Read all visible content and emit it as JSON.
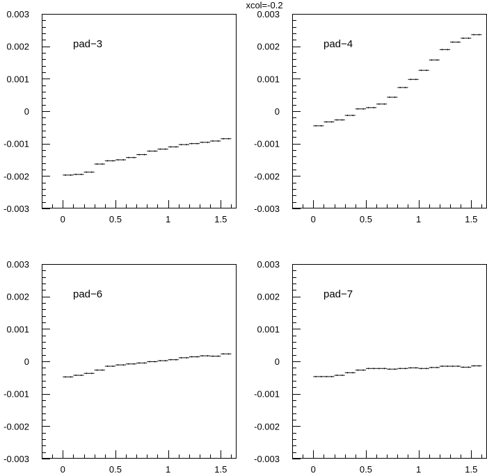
{
  "title": "xcol=-0.2",
  "chart_data": [
    {
      "type": "scatter",
      "pad_label": "pad−3",
      "xlim": [
        -0.2,
        1.65
      ],
      "ylim": [
        -0.003,
        0.003
      ],
      "x_ticks": [
        0,
        0.5,
        1,
        1.5
      ],
      "x_tick_labels": [
        "0",
        "0.5",
        "1",
        "1.5"
      ],
      "y_ticks": [
        0.003,
        0.002,
        0.001,
        0,
        -0.001,
        -0.002,
        -0.003
      ],
      "y_tick_labels": [
        "0.003",
        "0.002",
        "0.001",
        "0",
        "-0.001",
        "-0.002",
        "-0.003"
      ],
      "x": [
        0.025,
        0.075,
        0.125,
        0.175,
        0.225,
        0.275,
        0.325,
        0.375,
        0.425,
        0.475,
        0.525,
        0.575,
        0.625,
        0.675,
        0.725,
        0.775,
        0.825,
        0.875,
        0.925,
        0.975,
        1.025,
        1.075,
        1.125,
        1.175,
        1.225,
        1.275,
        1.325,
        1.375,
        1.425,
        1.475,
        1.525,
        1.575
      ],
      "y": [
        -0.00197,
        -0.00197,
        -0.00195,
        -0.00195,
        -0.00188,
        -0.00188,
        -0.00163,
        -0.00163,
        -0.00153,
        -0.00153,
        -0.0015,
        -0.0015,
        -0.00143,
        -0.00143,
        -0.00134,
        -0.00134,
        -0.00123,
        -0.00123,
        -0.00117,
        -0.00117,
        -0.0011,
        -0.0011,
        -0.00103,
        -0.00103,
        -0.001,
        -0.001,
        -0.00096,
        -0.00096,
        -0.00092,
        -0.00092,
        -0.00085,
        -0.00085
      ]
    },
    {
      "type": "scatter",
      "pad_label": "pad−4",
      "xlim": [
        -0.2,
        1.65
      ],
      "ylim": [
        -0.003,
        0.003
      ],
      "x_ticks": [
        0,
        0.5,
        1,
        1.5
      ],
      "x_tick_labels": [
        "0",
        "0.5",
        "1",
        "1.5"
      ],
      "y_ticks": [
        0.003,
        0.002,
        0.001,
        0,
        -0.001,
        -0.002,
        -0.003
      ],
      "y_tick_labels": [
        "0.003",
        "0.002",
        "0.001",
        "0",
        "-0.001",
        "-0.002",
        "-0.003"
      ],
      "x": [
        0.025,
        0.075,
        0.125,
        0.175,
        0.225,
        0.275,
        0.325,
        0.375,
        0.425,
        0.475,
        0.525,
        0.575,
        0.625,
        0.675,
        0.725,
        0.775,
        0.825,
        0.875,
        0.925,
        0.975,
        1.025,
        1.075,
        1.125,
        1.175,
        1.225,
        1.275,
        1.325,
        1.375,
        1.425,
        1.475,
        1.525,
        1.575
      ],
      "y": [
        -0.00045,
        -0.00045,
        -0.00033,
        -0.00033,
        -0.00027,
        -0.00027,
        -0.00013,
        -0.00013,
        7e-05,
        7e-05,
        0.00011,
        0.00011,
        0.00022,
        0.00022,
        0.00043,
        0.00043,
        0.00073,
        0.00073,
        0.00098,
        0.00098,
        0.00126,
        0.00126,
        0.00158,
        0.00158,
        0.0019,
        0.0019,
        0.00213,
        0.00213,
        0.00225,
        0.00225,
        0.00236,
        0.00236
      ]
    },
    {
      "type": "scatter",
      "pad_label": "pad−6",
      "xlim": [
        -0.2,
        1.65
      ],
      "ylim": [
        -0.003,
        0.003
      ],
      "x_ticks": [
        0,
        0.5,
        1,
        1.5
      ],
      "x_tick_labels": [
        "0",
        "0.5",
        "1",
        "1.5"
      ],
      "y_ticks": [
        0.003,
        0.002,
        0.001,
        0,
        -0.001,
        -0.002,
        -0.003
      ],
      "y_tick_labels": [
        "0.003",
        "0.002",
        "0.001",
        "0",
        "-0.001",
        "-0.002",
        "-0.003"
      ],
      "x": [
        0.025,
        0.075,
        0.125,
        0.175,
        0.225,
        0.275,
        0.325,
        0.375,
        0.425,
        0.475,
        0.525,
        0.575,
        0.625,
        0.675,
        0.725,
        0.775,
        0.825,
        0.875,
        0.925,
        0.975,
        1.025,
        1.075,
        1.125,
        1.175,
        1.225,
        1.275,
        1.325,
        1.375,
        1.425,
        1.475,
        1.525,
        1.575
      ],
      "y": [
        -0.00048,
        -0.00048,
        -0.00043,
        -0.00043,
        -0.00037,
        -0.00037,
        -0.00027,
        -0.00027,
        -0.00015,
        -0.00015,
        -0.00011,
        -0.00011,
        -8e-05,
        -8e-05,
        -5e-05,
        -5e-05,
        -1e-05,
        -1e-05,
        2e-05,
        2e-05,
        5e-05,
        5e-05,
        0.00011,
        0.00011,
        0.00014,
        0.00014,
        0.00017,
        0.00017,
        0.00016,
        0.00016,
        0.00023,
        0.00023
      ]
    },
    {
      "type": "scatter",
      "pad_label": "pad−7",
      "xlim": [
        -0.2,
        1.65
      ],
      "ylim": [
        -0.003,
        0.003
      ],
      "x_ticks": [
        0,
        0.5,
        1,
        1.5
      ],
      "x_tick_labels": [
        "0",
        "0.5",
        "1",
        "1.5"
      ],
      "y_ticks": [
        0.003,
        0.002,
        0.001,
        0,
        -0.001,
        -0.002,
        -0.003
      ],
      "y_tick_labels": [
        "0.003",
        "0.002",
        "0.001",
        "0",
        "-0.001",
        "-0.002",
        "-0.003"
      ],
      "x": [
        0.025,
        0.075,
        0.125,
        0.175,
        0.225,
        0.275,
        0.325,
        0.375,
        0.425,
        0.475,
        0.525,
        0.575,
        0.625,
        0.675,
        0.725,
        0.775,
        0.825,
        0.875,
        0.925,
        0.975,
        1.025,
        1.075,
        1.125,
        1.175,
        1.225,
        1.275,
        1.325,
        1.375,
        1.425,
        1.475,
        1.525,
        1.575
      ],
      "y": [
        -0.00047,
        -0.00047,
        -0.00047,
        -0.00047,
        -0.00043,
        -0.00043,
        -0.00035,
        -0.00035,
        -0.00027,
        -0.00027,
        -0.00022,
        -0.00022,
        -0.00022,
        -0.00022,
        -0.00024,
        -0.00024,
        -0.00022,
        -0.00022,
        -0.0002,
        -0.0002,
        -0.00022,
        -0.00022,
        -0.00019,
        -0.00019,
        -0.00015,
        -0.00015,
        -0.00015,
        -0.00015,
        -0.00018,
        -0.00018,
        -0.00014,
        -0.00014
      ]
    }
  ]
}
